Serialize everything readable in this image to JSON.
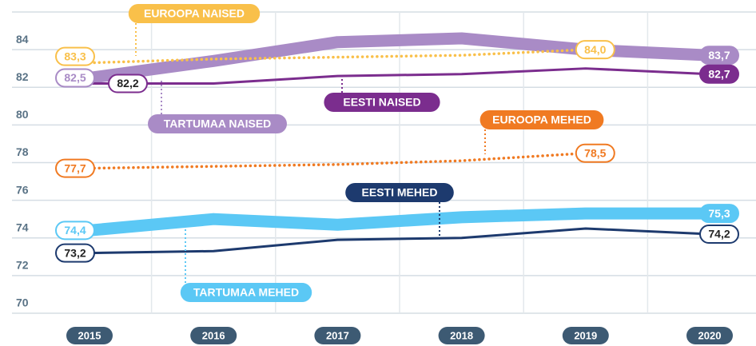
{
  "chart_data": {
    "type": "line",
    "categories": [
      "2015",
      "2016",
      "2017",
      "2018",
      "2019",
      "2020"
    ],
    "ylim": [
      70,
      86
    ],
    "yticks": [
      70,
      72,
      74,
      76,
      78,
      80,
      82,
      84
    ],
    "grid": true,
    "series": [
      {
        "name": "TARTUMAA NAISED",
        "color": "#a98bc6",
        "style": "thick",
        "values": [
          82.5,
          83.4,
          84.4,
          84.6,
          84.0,
          83.7
        ],
        "value_labels": [
          "82,5",
          null,
          null,
          null,
          null,
          "83,7"
        ]
      },
      {
        "name": "TARTUMAA MEHED",
        "color": "#5bc8f5",
        "style": "thick",
        "values": [
          74.4,
          75.0,
          74.7,
          75.1,
          75.3,
          75.3
        ],
        "value_labels": [
          "74,4",
          null,
          null,
          null,
          null,
          "75,3"
        ]
      },
      {
        "name": "EESTI NAISED",
        "color": "#7b2d8e",
        "style": "solid",
        "values": [
          82.2,
          82.2,
          82.6,
          82.7,
          83.0,
          82.7
        ],
        "value_labels": [
          "82,2",
          null,
          null,
          null,
          null,
          "82,7"
        ]
      },
      {
        "name": "EESTI MEHED",
        "color": "#1d3a6e",
        "style": "solid",
        "values": [
          73.2,
          73.3,
          73.9,
          74.0,
          74.5,
          74.2
        ],
        "value_labels": [
          "73,2",
          null,
          null,
          null,
          null,
          "74,2"
        ]
      },
      {
        "name": "EUROOPA NAISED",
        "color": "#f9c04a",
        "style": "dotted",
        "values": [
          83.3,
          83.5,
          83.6,
          83.7,
          84.0,
          null
        ],
        "value_labels": [
          "83,3",
          null,
          null,
          null,
          "84,0",
          null
        ]
      },
      {
        "name": "EUROOPA MEHED",
        "color": "#f07a22",
        "style": "dotted",
        "values": [
          77.7,
          77.8,
          77.9,
          78.1,
          78.5,
          null
        ],
        "value_labels": [
          "77,7",
          null,
          null,
          null,
          "78,5",
          null
        ]
      }
    ]
  }
}
